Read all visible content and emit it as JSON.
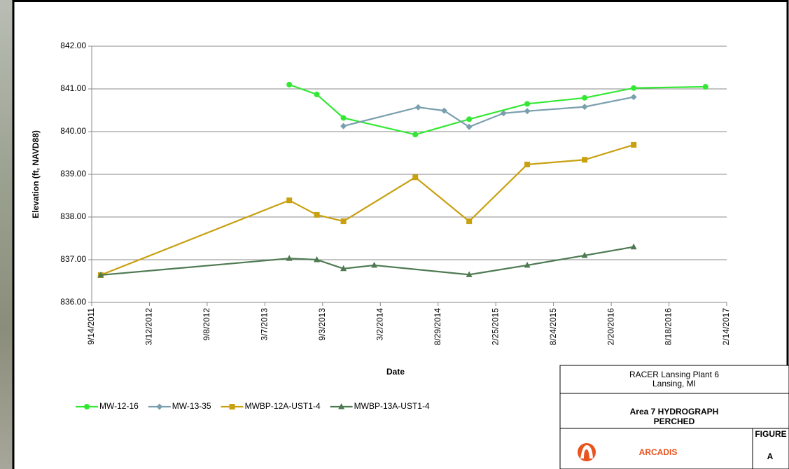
{
  "chart_data": {
    "type": "line",
    "y_label": "Elevation (ft, NAVD88)",
    "x_label": "Date",
    "xlim": [
      "2011-09-14",
      "2017-02-14"
    ],
    "xticks": [
      {
        "value": "2011-09-14",
        "label": "9/14/2011"
      },
      {
        "value": "2012-03-12",
        "label": "3/12/2012"
      },
      {
        "value": "2012-09-08",
        "label": "9/8/2012"
      },
      {
        "value": "2013-03-07",
        "label": "3/7/2013"
      },
      {
        "value": "2013-09-03",
        "label": "9/3/2013"
      },
      {
        "value": "2014-03-02",
        "label": "3/2/2014"
      },
      {
        "value": "2014-08-29",
        "label": "8/29/2014"
      },
      {
        "value": "2015-02-25",
        "label": "2/25/2015"
      },
      {
        "value": "2015-08-24",
        "label": "8/24/2015"
      },
      {
        "value": "2016-02-20",
        "label": "2/20/2016"
      },
      {
        "value": "2016-08-18",
        "label": "8/18/2016"
      },
      {
        "value": "2017-02-14",
        "label": "2/14/2017"
      }
    ],
    "ylim": [
      836,
      842
    ],
    "yticks": [
      {
        "value": 836,
        "label": "836.00"
      },
      {
        "value": 837,
        "label": "837.00"
      },
      {
        "value": 838,
        "label": "838.00"
      },
      {
        "value": 839,
        "label": "839.00"
      },
      {
        "value": 840,
        "label": "840.00"
      },
      {
        "value": 841,
        "label": "841.00"
      },
      {
        "value": 842,
        "label": "842.00"
      }
    ],
    "grid": true,
    "series": [
      {
        "name": "MW-12-16",
        "color": "#33e833",
        "marker": "circle",
        "x": [
          "2013-05-22",
          "2013-08-16",
          "2013-11-07",
          "2014-06-19",
          "2014-12-04",
          "2015-06-03",
          "2015-11-29",
          "2016-04-30",
          "2016-12-10"
        ],
        "values": [
          841.1,
          840.87,
          840.32,
          839.93,
          840.29,
          840.65,
          840.79,
          841.02,
          841.05
        ]
      },
      {
        "name": "MW-13-35",
        "color": "#7a9fae",
        "marker": "diamond",
        "x": [
          "2013-11-07",
          "2014-06-28",
          "2014-09-17",
          "2014-12-04",
          "2015-03-21",
          "2015-06-03",
          "2015-11-29",
          "2016-04-30"
        ],
        "values": [
          840.13,
          840.57,
          840.49,
          840.11,
          840.43,
          840.48,
          840.58,
          840.81
        ]
      },
      {
        "name": "MWBP-12A-UST1-4",
        "color": "#c8a010",
        "marker": "square",
        "x": [
          "2011-10-12",
          "2013-05-22",
          "2013-08-16",
          "2013-11-07",
          "2014-06-19",
          "2014-12-04",
          "2015-06-03",
          "2015-11-29",
          "2016-04-30"
        ],
        "values": [
          836.64,
          838.39,
          838.05,
          837.9,
          838.93,
          837.9,
          839.23,
          839.34,
          839.69
        ]
      },
      {
        "name": "MWBP-13A-UST1-4",
        "color": "#4e7a52",
        "marker": "triangle",
        "x": [
          "2011-10-12",
          "2013-05-22",
          "2013-08-16",
          "2013-11-07",
          "2014-02-11",
          "2014-12-04",
          "2015-06-03",
          "2015-11-29",
          "2016-04-30"
        ],
        "values": [
          836.64,
          837.03,
          837.0,
          836.79,
          836.87,
          836.65,
          836.87,
          837.1,
          837.3
        ]
      }
    ]
  },
  "title_block": {
    "client": "RACER Lansing Plant 6",
    "location": "Lansing, MI",
    "title": "Area 7 HYDROGRAPH",
    "subtitle": "PERCHED",
    "company": "ARCADIS",
    "figure_label": "FIGURE",
    "figure": "A"
  }
}
